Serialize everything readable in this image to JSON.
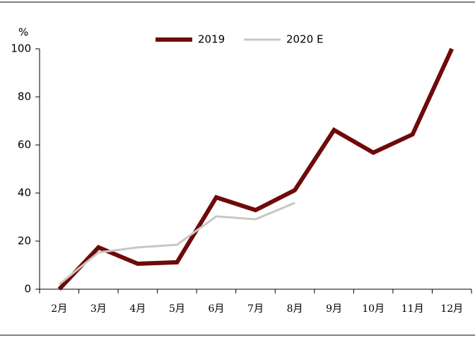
{
  "chart_data": {
    "type": "line",
    "y_unit": "%",
    "categories": [
      "2月",
      "3月",
      "4月",
      "5月",
      "6月",
      "7月",
      "8月",
      "9月",
      "10月",
      "11月",
      "12月"
    ],
    "series": [
      {
        "name": "2019",
        "color": "#6e0a0a",
        "values": [
          0,
          17.4,
          10.6,
          11.2,
          38.2,
          32.9,
          41.2,
          66.2,
          56.8,
          64.4,
          100
        ]
      },
      {
        "name": "2020 E",
        "color": "#c8c8c2",
        "values": [
          2,
          15.3,
          17.4,
          18.5,
          30.3,
          29.1,
          35.9,
          null,
          null,
          null,
          null
        ]
      }
    ],
    "ylim": [
      0,
      100
    ],
    "yticks": [
      0,
      20,
      40,
      60,
      80,
      100
    ],
    "legend": "top"
  }
}
